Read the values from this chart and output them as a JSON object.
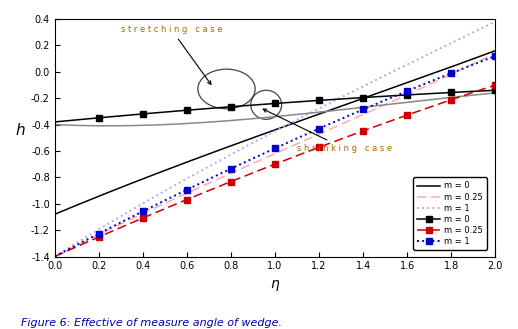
{
  "title": "",
  "xlabel": "η",
  "ylabel": "h",
  "xlim": [
    0.0,
    2.0
  ],
  "ylim": [
    -1.4,
    0.4
  ],
  "xticks": [
    0.0,
    0.2,
    0.4,
    0.6,
    0.8,
    1.0,
    1.2,
    1.4,
    1.6,
    1.8,
    2.0
  ],
  "yticks": [
    -1.4,
    -1.2,
    -1.0,
    -0.8,
    -0.6,
    -0.4,
    -0.2,
    0.0,
    0.2,
    0.4
  ],
  "figure_caption": "Figure 6: Effective of measure angle of wedge.",
  "stretching_label": "s t r e t c h i n g   c a s e",
  "shrinking_label": "s h r i n k i n g   c a s e",
  "bg": "#ffffff",
  "color_stretch_m0": "#000000",
  "color_stretch_m025": "#ffaaaa",
  "color_stretch_m1": "#aaaaff",
  "color_shrink_m0": "#000000",
  "color_shrink_m025": "#cc0000",
  "color_shrink_m1": "#0000cc",
  "color_extra_gray": "#888888",
  "lw": 1.1,
  "ms": 4,
  "legend_labels": [
    "m = 0",
    "m = 0.25",
    "m = 1",
    "m = 0",
    "m = 0.25",
    "m = 1"
  ]
}
